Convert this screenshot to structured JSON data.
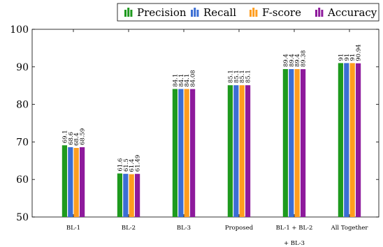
{
  "chart_data": {
    "type": "bar",
    "categories": [
      "BL-1",
      "BL-2",
      "BL-3",
      "Proposed",
      "BL-1 + BL-2 + BL-3",
      "All Together"
    ],
    "category_lines": [
      [
        "BL-1"
      ],
      [
        "BL-2"
      ],
      [
        "BL-3"
      ],
      [
        "Proposed"
      ],
      [
        "BL-1  +  BL-2",
        "+  BL-3"
      ],
      [
        "All  Together"
      ]
    ],
    "series": [
      {
        "name": "Precision",
        "color": "#1e9a1e",
        "values": [
          69.1,
          61.6,
          84.1,
          85.1,
          89.4,
          91
        ]
      },
      {
        "name": "Recall",
        "color": "#3b6ed4",
        "values": [
          68.6,
          61.5,
          84.1,
          85.1,
          89.4,
          91
        ]
      },
      {
        "name": "F-score",
        "color": "#ff9d1e",
        "values": [
          68.4,
          61.4,
          84.1,
          85.1,
          89.4,
          91
        ]
      },
      {
        "name": "Accuracy",
        "color": "#8e1a9c",
        "values": [
          68.59,
          61.49,
          84.08,
          85.1,
          89.38,
          90.94
        ]
      }
    ],
    "value_labels": [
      [
        "69.1",
        "68.6",
        "68.4",
        "68.59"
      ],
      [
        "61.6",
        "61.5",
        "61.4",
        "61.49"
      ],
      [
        "84.1",
        "84.1",
        "84.1",
        "84.08"
      ],
      [
        "85.1",
        "85.1",
        "85.1",
        "85.1"
      ],
      [
        "89.4",
        "89.4",
        "89.4",
        "89.38"
      ],
      [
        "91",
        "91",
        "91",
        "90.94"
      ]
    ],
    "ylim": [
      50,
      100
    ],
    "yticks": [
      50,
      60,
      70,
      80,
      90,
      100
    ],
    "title": "",
    "xlabel": "",
    "ylabel": "",
    "legend_position": "top-right",
    "grid": false
  }
}
